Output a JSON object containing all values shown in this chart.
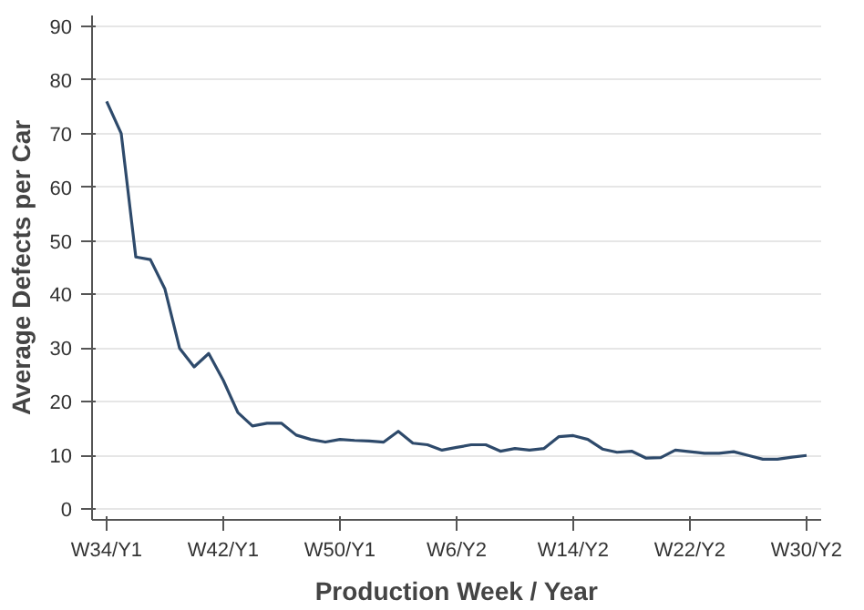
{
  "chart_data": {
    "type": "line",
    "xlabel": "Production Week / Year",
    "ylabel": "Average Defects per Car",
    "categories": [
      "W34/Y1",
      null,
      null,
      null,
      null,
      null,
      null,
      null,
      "W42/Y1",
      null,
      null,
      null,
      null,
      null,
      null,
      null,
      "W50/Y1",
      null,
      null,
      null,
      null,
      null,
      null,
      null,
      "W6/Y2",
      null,
      null,
      null,
      null,
      null,
      null,
      null,
      "W14/Y2",
      null,
      null,
      null,
      null,
      null,
      null,
      null,
      "W22/Y2",
      null,
      null,
      null,
      null,
      null,
      null,
      null,
      "W30/Y2"
    ],
    "series": [
      {
        "color": "#2e4a6b",
        "values": [
          76,
          70,
          47,
          46.5,
          41,
          30,
          26.5,
          29,
          24,
          18,
          15.5,
          16,
          16,
          13.8,
          13,
          12.5,
          13,
          12.8,
          12.7,
          12.5,
          14.5,
          12.3,
          12,
          11,
          11.5,
          12,
          12,
          10.8,
          11.3,
          11,
          11.3,
          13.5,
          13.7,
          13,
          11.2,
          10.6,
          10.8,
          9.5,
          9.6,
          11,
          10.7,
          10.4,
          10.4,
          10.7,
          10,
          9.3,
          9.3,
          9.7,
          10
        ]
      }
    ],
    "ylim": [
      -2,
      92
    ],
    "yticks": [
      0,
      10,
      20,
      30,
      40,
      50,
      60,
      70,
      80,
      90
    ],
    "grid": "y",
    "line_style": "solid"
  }
}
